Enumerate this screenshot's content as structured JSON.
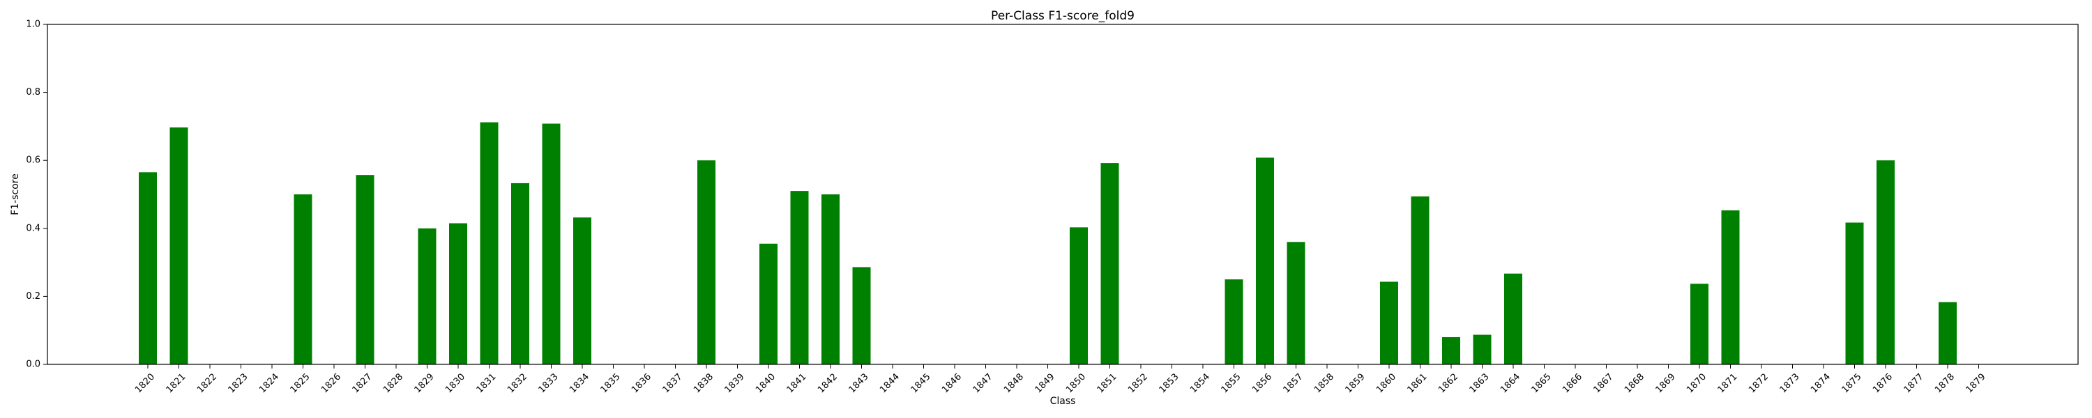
{
  "chart_data": {
    "type": "bar",
    "title": "Per-Class F1-score_fold9",
    "xlabel": "Class",
    "ylabel": "F1-score",
    "ylim": [
      0,
      1.0
    ],
    "yticks": [
      "0.0",
      "0.2",
      "0.4",
      "0.6",
      "0.8",
      "1.0"
    ],
    "bar_color": "#008000",
    "grid": false,
    "categories": [
      "1820",
      "1821",
      "1822",
      "1823",
      "1824",
      "1825",
      "1826",
      "1827",
      "1828",
      "1829",
      "1830",
      "1831",
      "1832",
      "1833",
      "1834",
      "1835",
      "1836",
      "1837",
      "1838",
      "1839",
      "1840",
      "1841",
      "1842",
      "1843",
      "1844",
      "1845",
      "1846",
      "1847",
      "1848",
      "1849",
      "1850",
      "1851",
      "1852",
      "1853",
      "1854",
      "1855",
      "1856",
      "1857",
      "1858",
      "1859",
      "1860",
      "1861",
      "1862",
      "1863",
      "1864",
      "1865",
      "1866",
      "1867",
      "1868",
      "1869",
      "1870",
      "1871",
      "1872",
      "1873",
      "1874",
      "1875",
      "1876",
      "1877",
      "1878",
      "1879"
    ],
    "values": [
      0.565,
      0.697,
      0,
      0,
      0,
      0.5,
      0,
      0.557,
      0,
      0.4,
      0.415,
      0.712,
      0.533,
      0.708,
      0.432,
      0,
      0,
      0,
      0.6,
      0,
      0.355,
      0.51,
      0.5,
      0.286,
      0,
      0,
      0,
      0,
      0,
      0,
      0.403,
      0.592,
      0,
      0,
      0,
      0.25,
      0.608,
      0.36,
      0,
      0,
      0.243,
      0.494,
      0.08,
      0.087,
      0.267,
      0,
      0,
      0,
      0,
      0,
      0.237,
      0.453,
      0,
      0,
      0,
      0.417,
      0.6,
      0,
      0.183,
      0
    ]
  }
}
